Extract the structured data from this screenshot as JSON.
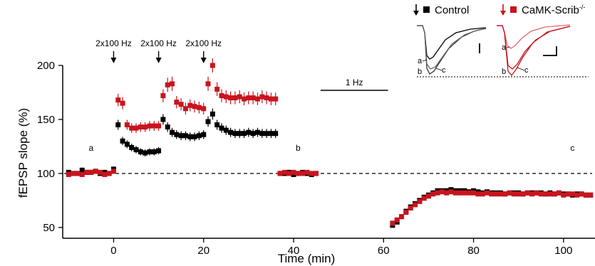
{
  "chart_data": {
    "type": "scatter",
    "xlabel": "Time (min)",
    "ylabel": "fEPSP slope (%)",
    "xlim": [
      -11,
      107
    ],
    "ylim": [
      40,
      200
    ],
    "x_ticks": [
      "0",
      "20",
      "40",
      "60",
      "80",
      "100"
    ],
    "y_ticks": [
      "50",
      "100",
      "150",
      "200"
    ],
    "baseline": 100,
    "colors": {
      "control": "#000000",
      "scrib": "#c8141e"
    },
    "stimuli": [
      {
        "label": "2x100 Hz",
        "x": 0
      },
      {
        "label": "2x100 Hz",
        "x": 10
      },
      {
        "label": "2x100 Hz",
        "x": 20
      }
    ],
    "bar_annotation": {
      "label": "1 Hz",
      "x_start": 46,
      "x_end": 61
    },
    "timepoint_labels": [
      {
        "label": "a",
        "x": -5
      },
      {
        "label": "b",
        "x": 41
      },
      {
        "label": "c",
        "x": 102
      }
    ],
    "legend": [
      {
        "name": "Control",
        "series": "control"
      },
      {
        "name": "CaMK-Scrib",
        "superscript": "-/-",
        "series": "scrib"
      }
    ],
    "trace_labels": [
      "a",
      "b",
      "c"
    ],
    "series": [
      {
        "name": "Control",
        "key": "control",
        "points": [
          [
            -10,
            101
          ],
          [
            -9,
            100
          ],
          [
            -8,
            100
          ],
          [
            -7,
            103
          ],
          [
            -6,
            101
          ],
          [
            -5,
            101
          ],
          [
            -4,
            102
          ],
          [
            -3,
            100
          ],
          [
            -2,
            101
          ],
          [
            -1,
            100
          ],
          [
            0,
            104
          ],
          [
            1,
            145
          ],
          [
            2,
            130
          ],
          [
            3,
            127
          ],
          [
            4,
            124
          ],
          [
            5,
            122
          ],
          [
            6,
            120
          ],
          [
            7,
            119
          ],
          [
            8,
            120
          ],
          [
            9,
            120
          ],
          [
            10,
            121
          ],
          [
            11,
            150
          ],
          [
            12,
            143
          ],
          [
            13,
            138
          ],
          [
            14,
            136
          ],
          [
            15,
            135
          ],
          [
            16,
            135
          ],
          [
            17,
            134
          ],
          [
            18,
            134
          ],
          [
            19,
            135
          ],
          [
            20,
            136
          ],
          [
            21,
            148
          ],
          [
            22,
            155
          ],
          [
            23,
            145
          ],
          [
            24,
            142
          ],
          [
            25,
            140
          ],
          [
            26,
            138
          ],
          [
            27,
            137
          ],
          [
            28,
            137
          ],
          [
            29,
            137
          ],
          [
            30,
            138
          ],
          [
            31,
            137
          ],
          [
            32,
            138
          ],
          [
            33,
            137
          ],
          [
            34,
            137
          ],
          [
            35,
            137
          ],
          [
            36,
            137
          ],
          [
            37,
            100
          ],
          [
            38,
            100
          ],
          [
            39,
            101
          ],
          [
            40,
            99
          ],
          [
            41,
            100
          ],
          [
            42,
            101
          ],
          [
            43,
            100
          ],
          [
            44,
            99
          ],
          [
            45,
            100
          ],
          [
            62,
            52
          ],
          [
            63,
            55
          ],
          [
            64,
            60
          ],
          [
            65,
            65
          ],
          [
            66,
            69
          ],
          [
            67,
            72
          ],
          [
            68,
            75
          ],
          [
            69,
            78
          ],
          [
            70,
            80
          ],
          [
            71,
            82
          ],
          [
            72,
            84
          ],
          [
            73,
            84
          ],
          [
            74,
            84
          ],
          [
            75,
            85
          ],
          [
            76,
            84
          ],
          [
            77,
            84
          ],
          [
            78,
            84
          ],
          [
            79,
            83
          ],
          [
            80,
            84
          ],
          [
            81,
            83
          ],
          [
            82,
            82
          ],
          [
            83,
            83
          ],
          [
            84,
            82
          ],
          [
            85,
            82
          ],
          [
            86,
            82
          ],
          [
            87,
            81
          ],
          [
            88,
            82
          ],
          [
            89,
            82
          ],
          [
            90,
            82
          ],
          [
            91,
            81
          ],
          [
            92,
            82
          ],
          [
            93,
            82
          ],
          [
            94,
            82
          ],
          [
            95,
            82
          ],
          [
            96,
            81
          ],
          [
            97,
            82
          ],
          [
            98,
            81
          ],
          [
            99,
            82
          ],
          [
            100,
            81
          ],
          [
            101,
            81
          ],
          [
            102,
            80
          ],
          [
            103,
            81
          ],
          [
            104,
            81
          ],
          [
            105,
            80
          ],
          [
            106,
            80
          ]
        ]
      },
      {
        "name": "CaMK-Scrib-/-",
        "key": "scrib",
        "points": [
          [
            -10,
            99
          ],
          [
            -9,
            100
          ],
          [
            -8,
            100
          ],
          [
            -7,
            99
          ],
          [
            -6,
            101
          ],
          [
            -5,
            101
          ],
          [
            -4,
            102
          ],
          [
            -3,
            101
          ],
          [
            -2,
            99
          ],
          [
            -1,
            100
          ],
          [
            0,
            102
          ],
          [
            1,
            168
          ],
          [
            2,
            165
          ],
          [
            3,
            145
          ],
          [
            4,
            142
          ],
          [
            5,
            142
          ],
          [
            6,
            143
          ],
          [
            7,
            143
          ],
          [
            8,
            144
          ],
          [
            9,
            144
          ],
          [
            10,
            144
          ],
          [
            11,
            172
          ],
          [
            12,
            182
          ],
          [
            13,
            183
          ],
          [
            14,
            166
          ],
          [
            15,
            164
          ],
          [
            16,
            160
          ],
          [
            17,
            163
          ],
          [
            18,
            162
          ],
          [
            19,
            161
          ],
          [
            20,
            160
          ],
          [
            21,
            183
          ],
          [
            22,
            200
          ],
          [
            23,
            178
          ],
          [
            24,
            172
          ],
          [
            25,
            171
          ],
          [
            26,
            170
          ],
          [
            27,
            170
          ],
          [
            28,
            171
          ],
          [
            29,
            169
          ],
          [
            30,
            170
          ],
          [
            31,
            170
          ],
          [
            32,
            169
          ],
          [
            33,
            171
          ],
          [
            34,
            170
          ],
          [
            35,
            169
          ],
          [
            36,
            169
          ],
          [
            37,
            100
          ],
          [
            38,
            101
          ],
          [
            39,
            100
          ],
          [
            40,
            101
          ],
          [
            41,
            100
          ],
          [
            42,
            100
          ],
          [
            43,
            101
          ],
          [
            44,
            100
          ],
          [
            45,
            100
          ],
          [
            62,
            54
          ],
          [
            63,
            57
          ],
          [
            64,
            60
          ],
          [
            65,
            64
          ],
          [
            66,
            68
          ],
          [
            67,
            71
          ],
          [
            68,
            74
          ],
          [
            69,
            77
          ],
          [
            70,
            79
          ],
          [
            71,
            81
          ],
          [
            72,
            82
          ],
          [
            73,
            83
          ],
          [
            74,
            82
          ],
          [
            75,
            83
          ],
          [
            76,
            82
          ],
          [
            77,
            82
          ],
          [
            78,
            82
          ],
          [
            79,
            82
          ],
          [
            80,
            82
          ],
          [
            81,
            81
          ],
          [
            82,
            81
          ],
          [
            83,
            82
          ],
          [
            84,
            81
          ],
          [
            85,
            81
          ],
          [
            86,
            81
          ],
          [
            87,
            81
          ],
          [
            88,
            82
          ],
          [
            89,
            81
          ],
          [
            90,
            81
          ],
          [
            91,
            81
          ],
          [
            92,
            82
          ],
          [
            93,
            81
          ],
          [
            94,
            82
          ],
          [
            95,
            81
          ],
          [
            96,
            81
          ],
          [
            97,
            81
          ],
          [
            98,
            81
          ],
          [
            99,
            82
          ],
          [
            100,
            80
          ],
          [
            101,
            81
          ],
          [
            102,
            81
          ],
          [
            103,
            80
          ],
          [
            104,
            81
          ],
          [
            105,
            80
          ],
          [
            106,
            80
          ]
        ]
      }
    ]
  }
}
